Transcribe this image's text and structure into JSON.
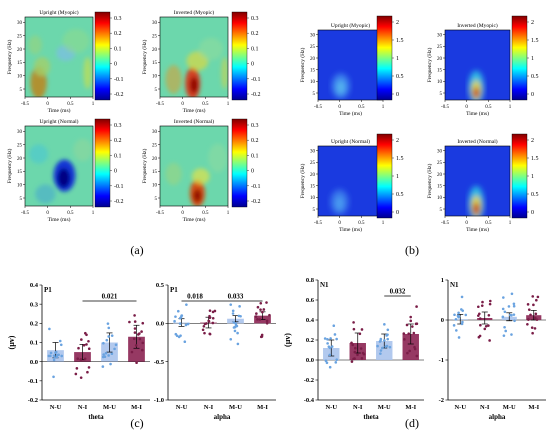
{
  "panel_labels": {
    "a": "(a)",
    "b": "(b)",
    "c": "(c)",
    "d": "(d)"
  },
  "tf_axes": {
    "ylabel": "Frequency (Hz)",
    "xlabel": "Time (ms)",
    "xticks": [
      "-0.5",
      "0",
      "0.5",
      "1"
    ],
    "yticks": [
      "5",
      "10",
      "15",
      "20",
      "25",
      "30"
    ]
  },
  "panel_a": {
    "titles": [
      "Upright (Myopic)",
      "Inverted (Myopic)",
      "Upright (Normal)",
      "Inverted (Normal)"
    ],
    "colorbar_ticks": [
      "0.3",
      "0.2",
      "0.1",
      "0",
      "-0.1",
      "-0.2"
    ],
    "colorscale": [
      -0.25,
      0.35
    ]
  },
  "panel_b": {
    "titles": [
      "Upright (Myopic)",
      "Inverted (Myopic)",
      "Upright (Normal)",
      "Inverted (Normal)"
    ],
    "colorbar_ticks": [
      "2",
      "1.5",
      "1",
      "0.5",
      "0"
    ],
    "colorscale": [
      -0.2,
      2.3
    ]
  },
  "chart_data": [
    {
      "type": "bar",
      "panel_tag": "P1",
      "categories": [
        "N-U",
        "N-I",
        "M-U",
        "M-I"
      ],
      "values": [
        0.06,
        0.05,
        0.1,
        0.13
      ],
      "errors": [
        0.04,
        0.04,
        0.05,
        0.06
      ],
      "xlabel": "theta",
      "ylabel": "(μv)",
      "ylim": [
        -0.2,
        0.4
      ],
      "yticks": [
        "0.4",
        "0.3",
        "0.2",
        "0.1",
        "0.0",
        "-0.1",
        "-0.2"
      ],
      "significance": [
        {
          "from": 1,
          "to": 3,
          "label": "0.021"
        }
      ]
    },
    {
      "type": "bar",
      "panel_tag": "P1",
      "categories": [
        "N-U",
        "N-I",
        "M-U",
        "M-I"
      ],
      "values": [
        0.01,
        0.01,
        0.06,
        0.1
      ],
      "errors": [
        0.05,
        0.07,
        0.04,
        0.05
      ],
      "xlabel": "alpha",
      "ylabel": "",
      "ylim": [
        -1.0,
        0.5
      ],
      "yticks": [
        "0.5",
        "0.0",
        "-0.5",
        "-1.0"
      ],
      "significance": [
        {
          "from": 0,
          "to": 1,
          "label": "0.018"
        },
        {
          "from": 1,
          "to": 3,
          "label": "0.033"
        }
      ]
    },
    {
      "type": "bar",
      "panel_tag": "N1",
      "categories": [
        "N-U",
        "N-I",
        "M-U",
        "M-I"
      ],
      "values": [
        0.12,
        0.17,
        0.19,
        0.26
      ],
      "errors": [
        0.08,
        0.1,
        0.07,
        0.1
      ],
      "xlabel": "theta",
      "ylabel": "(μv)",
      "ylim": [
        -0.4,
        0.8
      ],
      "yticks": [
        "0.8",
        "0.6",
        "0.4",
        "0.2",
        "0.0",
        "-0.2",
        "-0.4"
      ],
      "significance": [
        {
          "from": 2,
          "to": 3,
          "label": "0.032"
        }
      ]
    },
    {
      "type": "bar",
      "panel_tag": "N1",
      "categories": [
        "N-U",
        "N-I",
        "M-U",
        "M-I"
      ],
      "values": [
        0.02,
        0.05,
        0.08,
        0.12
      ],
      "errors": [
        0.12,
        0.15,
        0.1,
        0.12
      ],
      "xlabel": "alpha",
      "ylabel": "",
      "ylim": [
        -2,
        1
      ],
      "yticks": [
        "1",
        "0",
        "-1",
        "-2"
      ],
      "significance": []
    }
  ],
  "colors": {
    "bar_light": "#aac3ec",
    "bar_dark": "#8b2452",
    "dot_light": "#6aa3e0",
    "dot_dark": "#7a1d47"
  }
}
